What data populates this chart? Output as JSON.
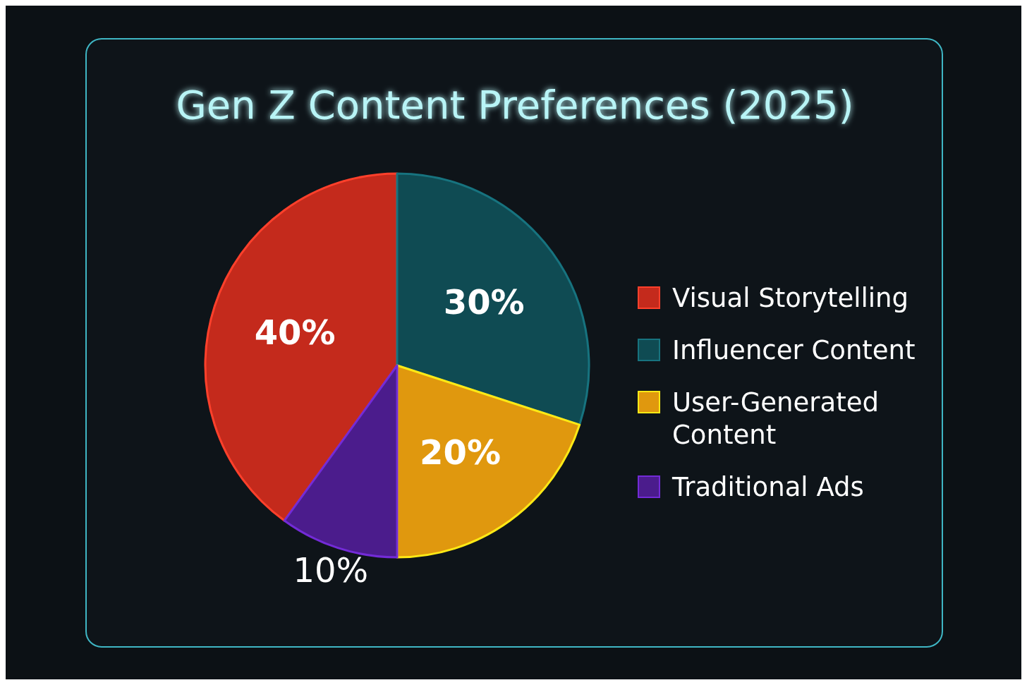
{
  "chart_data": {
    "type": "pie",
    "title": "Gen Z Content Preferences (2025)",
    "categories": [
      "Visual Storytelling",
      "Influencer Content",
      "User-Generated Content",
      "Traditional Ads"
    ],
    "values": [
      40,
      30,
      20,
      10
    ],
    "colors": [
      "#c42a1c",
      "#0f4b53",
      "#e0980e",
      "#4b1c8c"
    ],
    "value_labels": [
      "40%",
      "30%",
      "20%",
      "10%"
    ],
    "legend": "right"
  }
}
